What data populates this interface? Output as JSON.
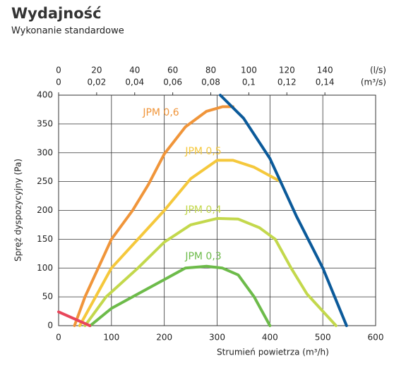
{
  "chart_data": {
    "type": "line",
    "title": "Wydajność",
    "subtitle": "Wykonanie standardowe",
    "ylabel": "Spręż dyspozycyjny (Pa)",
    "xlabel": "Strumień powietrza (m³/h)",
    "xlim": [
      0,
      600
    ],
    "xticks": [
      0,
      100,
      200,
      300,
      400,
      500,
      600
    ],
    "ylim": [
      0,
      400
    ],
    "yticks": [
      0,
      50,
      100,
      150,
      200,
      250,
      300,
      350,
      400
    ],
    "grid": true,
    "top_axis_ls": {
      "unit": "(l/s)",
      "lim": [
        0,
        166.67
      ],
      "ticks": [
        0,
        20,
        40,
        60,
        80,
        100,
        120,
        140
      ]
    },
    "top_axis_m3s": {
      "unit": "(m³/s)",
      "lim": [
        0,
        0.16667
      ],
      "ticks": [
        0,
        {
          "value": 0.02,
          "label": "0,02"
        },
        {
          "value": 0.04,
          "label": "0,04"
        },
        {
          "value": 0.06,
          "label": "0,06"
        },
        {
          "value": 0.08,
          "label": "0,08"
        },
        {
          "value": 0.1,
          "label": "0,1"
        },
        {
          "value": 0.12,
          "label": "0,12"
        },
        {
          "value": 0.14,
          "label": "0,14"
        }
      ]
    },
    "series": [
      {
        "name": "JPM 0,6",
        "color": "#f0953a",
        "x": [
          30,
          50,
          75,
          100,
          140,
          170,
          200,
          240,
          280,
          310,
          330
        ],
        "y": [
          0,
          50,
          100,
          150,
          200,
          245,
          298,
          345,
          372,
          380,
          380
        ]
      },
      {
        "name": "JPM 0,5",
        "color": "#f5c83c",
        "x": [
          40,
          70,
          100,
          150,
          200,
          250,
          300,
          330,
          370,
          420
        ],
        "y": [
          0,
          50,
          100,
          150,
          200,
          255,
          287,
          287,
          275,
          250
        ]
      },
      {
        "name": "JPM 0,4",
        "color": "#c3d84c",
        "x": [
          50,
          90,
          150,
          200,
          250,
          300,
          340,
          380,
          410,
          440,
          470,
          525
        ],
        "y": [
          0,
          50,
          100,
          145,
          175,
          186,
          185,
          170,
          150,
          100,
          55,
          0
        ]
      },
      {
        "name": "JPM 0,3",
        "color": "#6dbb4a",
        "x": [
          60,
          100,
          150,
          200,
          240,
          280,
          310,
          340,
          370,
          400
        ],
        "y": [
          0,
          30,
          55,
          80,
          100,
          103,
          100,
          88,
          50,
          0
        ]
      },
      {
        "color": "#0b5a9a",
        "x": [
          306,
          350,
          400,
          420,
          450,
          500,
          545
        ],
        "y": [
          400,
          360,
          290,
          250,
          190,
          100,
          0
        ]
      },
      {
        "color": "#e8465a",
        "x": [
          0,
          59
        ],
        "y": [
          24,
          0
        ]
      }
    ]
  }
}
